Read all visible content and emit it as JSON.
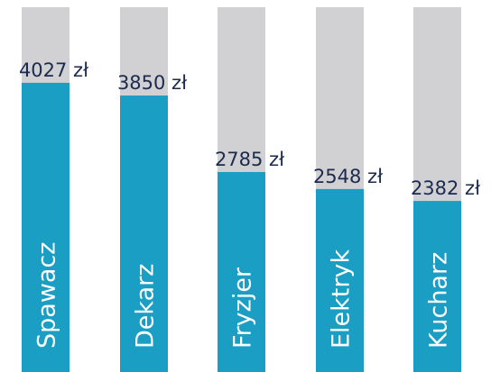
{
  "chart_data": {
    "type": "bar",
    "categories": [
      "Spawacz",
      "Dekarz",
      "Fryzjer",
      "Elektryk",
      "Kucharz"
    ],
    "values": [
      4027,
      3850,
      2785,
      2548,
      2382
    ],
    "value_labels": [
      "4027 zł",
      "3850 zł",
      "2785 zł",
      "2548 zł",
      "2382 zł"
    ],
    "color": "#1a9ec4",
    "track_color": "#d1d1d4",
    "ylim": [
      0,
      5080
    ]
  }
}
